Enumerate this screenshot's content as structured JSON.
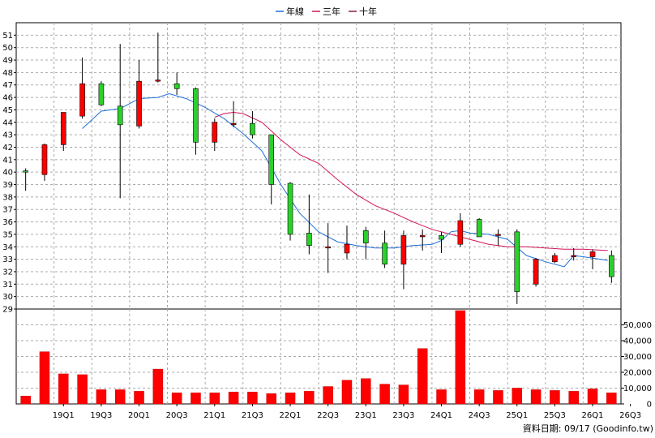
{
  "chart_data": {
    "type": "candlestick",
    "legend": [
      {
        "name": "年線",
        "color": "#1f6fd6"
      },
      {
        "name": "三年",
        "color": "#d4145a"
      },
      {
        "name": "十年",
        "color": "#8b1a4a"
      }
    ],
    "price_axis": {
      "ylim": [
        29,
        52
      ],
      "ticks": [
        29,
        30,
        31,
        32,
        33,
        34,
        35,
        36,
        37,
        38,
        39,
        40,
        41,
        42,
        43,
        44,
        45,
        46,
        47,
        48,
        49,
        50,
        51
      ]
    },
    "volume_axis": {
      "ylim": [
        0,
        60000
      ],
      "ticks": [
        0,
        10000,
        20000,
        30000,
        40000,
        50000
      ],
      "tick_labels": [
        "0",
        "10,000",
        "20,000",
        "30,000",
        "40,000",
        "50,000"
      ]
    },
    "x_labels": [
      "19Q1",
      "19Q3",
      "20Q1",
      "20Q3",
      "21Q1",
      "21Q3",
      "22Q1",
      "22Q3",
      "23Q1",
      "23Q3",
      "24Q1",
      "24Q3",
      "25Q1",
      "25Q3",
      "26Q1",
      "26Q3"
    ],
    "x_label_positions": [
      3,
      5,
      7,
      9,
      11,
      13,
      15,
      17,
      19,
      21,
      23,
      25,
      27,
      29,
      31,
      33
    ],
    "candles": [
      {
        "o": 40.1,
        "h": 40.3,
        "l": 38.5,
        "c": 40.0
      },
      {
        "o": 39.8,
        "h": 42.3,
        "l": 39.3,
        "c": 42.2
      },
      {
        "o": 42.2,
        "h": 44.8,
        "l": 41.7,
        "c": 44.8
      },
      {
        "o": 44.5,
        "h": 49.2,
        "l": 44.3,
        "c": 47.1
      },
      {
        "o": 47.1,
        "h": 47.3,
        "l": 45.3,
        "c": 45.4
      },
      {
        "o": 45.3,
        "h": 50.3,
        "l": 37.9,
        "c": 43.8
      },
      {
        "o": 43.7,
        "h": 49.0,
        "l": 43.5,
        "c": 47.3
      },
      {
        "o": 47.4,
        "h": 51.2,
        "l": 47.2,
        "c": 47.4
      },
      {
        "o": 47.1,
        "h": 48.0,
        "l": 46.2,
        "c": 46.7
      },
      {
        "o": 46.7,
        "h": 46.8,
        "l": 41.4,
        "c": 42.4
      },
      {
        "o": 42.4,
        "h": 44.3,
        "l": 41.7,
        "c": 44.0
      },
      {
        "o": 43.8,
        "h": 45.7,
        "l": 43.6,
        "c": 43.9
      },
      {
        "o": 43.9,
        "h": 44.9,
        "l": 42.7,
        "c": 43.0
      },
      {
        "o": 43.0,
        "h": 43.0,
        "l": 37.4,
        "c": 39.0
      },
      {
        "o": 39.1,
        "h": 39.2,
        "l": 34.5,
        "c": 35.0
      },
      {
        "o": 35.1,
        "h": 38.2,
        "l": 33.4,
        "c": 34.1
      },
      {
        "o": 34.0,
        "h": 35.9,
        "l": 31.9,
        "c": 34.0
      },
      {
        "o": 33.5,
        "h": 35.7,
        "l": 33.0,
        "c": 34.2
      },
      {
        "o": 35.3,
        "h": 35.6,
        "l": 33.0,
        "c": 34.3
      },
      {
        "o": 34.3,
        "h": 35.3,
        "l": 32.3,
        "c": 32.6
      },
      {
        "o": 32.6,
        "h": 35.3,
        "l": 30.6,
        "c": 34.9
      },
      {
        "o": 34.9,
        "h": 35.4,
        "l": 33.7,
        "c": 34.9
      },
      {
        "o": 34.9,
        "h": 35.2,
        "l": 33.5,
        "c": 34.6
      },
      {
        "o": 34.2,
        "h": 36.7,
        "l": 34.0,
        "c": 36.1
      },
      {
        "o": 36.2,
        "h": 36.3,
        "l": 34.8,
        "c": 34.8
      },
      {
        "o": 34.9,
        "h": 35.4,
        "l": 34.1,
        "c": 35.0
      },
      {
        "o": 35.2,
        "h": 35.4,
        "l": 29.4,
        "c": 30.4
      },
      {
        "o": 31.0,
        "h": 33.1,
        "l": 30.8,
        "c": 33.0
      },
      {
        "o": 32.8,
        "h": 33.5,
        "l": 32.7,
        "c": 33.3
      },
      {
        "o": 33.3,
        "h": 33.9,
        "l": 32.9,
        "c": 33.3
      },
      {
        "o": 33.2,
        "h": 33.8,
        "l": 32.2,
        "c": 33.6
      },
      {
        "o": 33.3,
        "h": 33.7,
        "l": 31.1,
        "c": 31.6
      }
    ],
    "volume": [
      5000,
      33000,
      19000,
      18500,
      9000,
      9000,
      8000,
      22000,
      7000,
      7000,
      7000,
      7500,
      7500,
      6500,
      7000,
      8000,
      11000,
      15000,
      16000,
      12500,
      12000,
      35000,
      9000,
      59000,
      9000,
      8500,
      10000,
      9000,
      8500,
      8000,
      9500,
      7000
    ],
    "ma_annual": [
      [
        4,
        43.5
      ],
      [
        5,
        44.9
      ],
      [
        6,
        45.1
      ],
      [
        7,
        45.9
      ],
      [
        8,
        46.0
      ],
      [
        8.6,
        46.3
      ],
      [
        9.5,
        45.9
      ],
      [
        10.5,
        45.2
      ],
      [
        11.5,
        44.3
      ],
      [
        12.5,
        43.1
      ],
      [
        13.5,
        41.7
      ],
      [
        14.5,
        39.0
      ],
      [
        15.5,
        36.7
      ],
      [
        16.5,
        35.2
      ],
      [
        17.5,
        34.4
      ],
      [
        18.5,
        34.1
      ],
      [
        19.5,
        33.9
      ],
      [
        20.5,
        33.9
      ],
      [
        21.5,
        34.1
      ],
      [
        22.5,
        34.2
      ],
      [
        23,
        34.5
      ],
      [
        23.5,
        35.2
      ],
      [
        24,
        35.3
      ],
      [
        24.5,
        35.1
      ],
      [
        25.5,
        35.0
      ],
      [
        26.5,
        34.6
      ],
      [
        27.5,
        33.3
      ],
      [
        28.5,
        32.8
      ],
      [
        29.5,
        32.4
      ],
      [
        30,
        33.3
      ],
      [
        31,
        33.1
      ],
      [
        31.8,
        32.9
      ]
    ],
    "ma_3yr": [
      [
        11,
        44.4
      ],
      [
        11.5,
        44.7
      ],
      [
        12,
        44.8
      ],
      [
        12.5,
        44.7
      ],
      [
        13.5,
        44.0
      ],
      [
        14.5,
        42.6
      ],
      [
        15.5,
        41.4
      ],
      [
        16.5,
        40.7
      ],
      [
        17.5,
        39.4
      ],
      [
        18.5,
        38.2
      ],
      [
        19.5,
        37.3
      ],
      [
        20.5,
        36.7
      ],
      [
        21.5,
        36.0
      ],
      [
        22.5,
        35.4
      ],
      [
        23.5,
        35.0
      ],
      [
        24.5,
        34.6
      ],
      [
        25.5,
        34.2
      ],
      [
        26.5,
        34.0
      ],
      [
        27.5,
        34.0
      ],
      [
        28.5,
        33.9
      ],
      [
        29.5,
        33.8
      ],
      [
        30.5,
        33.8
      ],
      [
        31.8,
        33.7
      ]
    ],
    "footer": "資料日期: 09/17  (Goodinfo.tw)"
  }
}
